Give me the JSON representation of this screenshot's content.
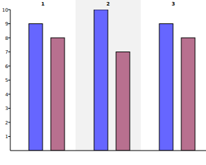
{
  "chart_data": {
    "type": "bar",
    "categories": [
      "1",
      "2",
      "3"
    ],
    "series": [
      {
        "color": "#6666ff",
        "values": [
          9,
          10,
          9
        ]
      },
      {
        "color": "#b8708f",
        "values": [
          8,
          7,
          8
        ]
      }
    ],
    "ylim": [
      0,
      10
    ],
    "yticks": [
      1,
      2,
      3,
      4,
      5,
      6,
      7,
      8,
      9,
      10
    ],
    "grid": false
  }
}
